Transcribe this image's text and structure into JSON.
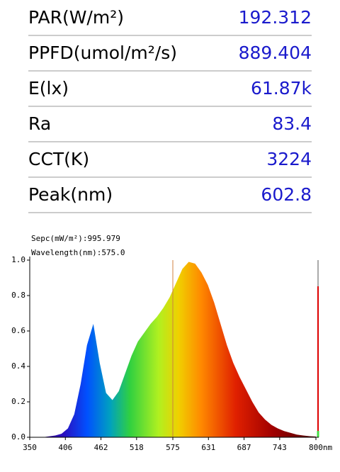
{
  "measurements": [
    {
      "label": "PAR(W/m²)",
      "value": "192.312"
    },
    {
      "label": "PPFD(umol/m²/s)",
      "value": "889.404"
    },
    {
      "label": "E(lx)",
      "value": "61.87k"
    },
    {
      "label": "Ra",
      "value": "83.4"
    },
    {
      "label": "CCT(K)",
      "value": "3224"
    },
    {
      "label": "Peak(nm)",
      "value": "602.8"
    }
  ],
  "chart_data": {
    "type": "area",
    "annotations": [
      "Sepc(mW/m²):995.979",
      "Wavelength(nm):575.0"
    ],
    "cursor_x": 575,
    "x": [
      350,
      360,
      370,
      380,
      390,
      400,
      410,
      420,
      430,
      440,
      450,
      460,
      470,
      480,
      490,
      500,
      510,
      520,
      530,
      540,
      550,
      560,
      570,
      580,
      590,
      600,
      610,
      620,
      630,
      640,
      650,
      660,
      670,
      680,
      690,
      700,
      710,
      720,
      730,
      740,
      750,
      760,
      770,
      780,
      790,
      800
    ],
    "values": [
      0,
      0,
      0,
      0.005,
      0.01,
      0.02,
      0.05,
      0.13,
      0.3,
      0.52,
      0.64,
      0.42,
      0.25,
      0.21,
      0.26,
      0.36,
      0.46,
      0.54,
      0.59,
      0.64,
      0.68,
      0.73,
      0.79,
      0.87,
      0.95,
      0.99,
      0.98,
      0.93,
      0.86,
      0.76,
      0.64,
      0.52,
      0.42,
      0.34,
      0.27,
      0.2,
      0.14,
      0.1,
      0.07,
      0.05,
      0.035,
      0.025,
      0.015,
      0.01,
      0.006,
      0.004
    ],
    "xlim": [
      350,
      800
    ],
    "xticks": [
      350,
      406,
      462,
      518,
      575,
      631,
      687,
      743,
      {
        "value": 800,
        "label": "800nm"
      }
    ],
    "ylim": [
      0,
      1
    ],
    "yticks": [
      {
        "value": 0,
        "label": "0.0"
      },
      0.2,
      0.4,
      0.6,
      0.8,
      {
        "value": 1,
        "label": "1.0"
      }
    ]
  }
}
